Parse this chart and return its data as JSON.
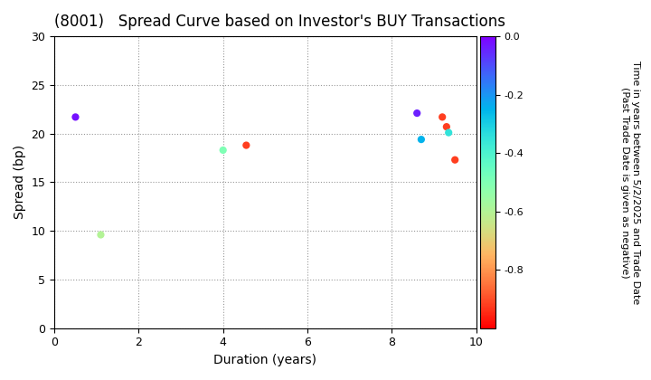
{
  "title": "(8001)   Spread Curve based on Investor's BUY Transactions",
  "xlabel": "Duration (years)",
  "ylabel": "Spread (bp)",
  "xlim": [
    0,
    10
  ],
  "ylim": [
    0,
    30
  ],
  "xticks": [
    0,
    2,
    4,
    6,
    8,
    10
  ],
  "yticks": [
    0,
    5,
    10,
    15,
    20,
    25,
    30
  ],
  "colorbar_label_line1": "Time in years between 5/2/2025 and Trade Date",
  "colorbar_label_line2": "(Past Trade Date is given as negative)",
  "colorbar_vmin": -1.0,
  "colorbar_vmax": 0.0,
  "colorbar_ticks": [
    0.0,
    -0.2,
    -0.4,
    -0.6,
    -0.8
  ],
  "points": [
    {
      "duration": 0.5,
      "spread": 21.7,
      "time_val": -0.02
    },
    {
      "duration": 1.1,
      "spread": 9.6,
      "time_val": -0.6
    },
    {
      "duration": 4.0,
      "spread": 18.3,
      "time_val": -0.5
    },
    {
      "duration": 4.55,
      "spread": 18.8,
      "time_val": -0.92
    },
    {
      "duration": 8.6,
      "spread": 22.1,
      "time_val": -0.04
    },
    {
      "duration": 8.7,
      "spread": 19.4,
      "time_val": -0.25
    },
    {
      "duration": 9.2,
      "spread": 21.7,
      "time_val": -0.92
    },
    {
      "duration": 9.3,
      "spread": 20.7,
      "time_val": -0.92
    },
    {
      "duration": 9.35,
      "spread": 20.1,
      "time_val": -0.35
    },
    {
      "duration": 9.5,
      "spread": 17.3,
      "time_val": -0.92
    }
  ],
  "marker_size": 35,
  "colormap": "rainbow",
  "background_color": "#ffffff",
  "grid_color": "#999999",
  "title_fontsize": 12,
  "label_fontsize": 10,
  "tick_fontsize": 9,
  "cbar_fontsize": 8
}
